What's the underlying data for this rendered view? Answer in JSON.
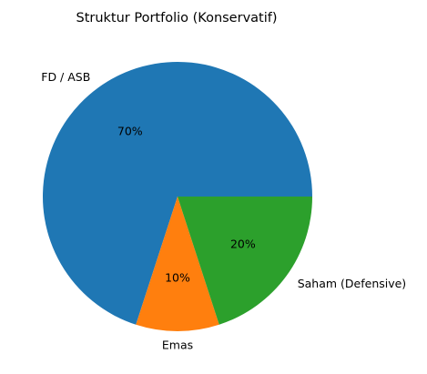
{
  "chart_data": {
    "type": "pie",
    "title": "Struktur Portfolio (Konservatif)",
    "slices": [
      {
        "label": "FD / ASB",
        "value": 70,
        "pct_label": "70%",
        "color": "#1f77b4"
      },
      {
        "label": "Emas",
        "value": 10,
        "pct_label": "10%",
        "color": "#ff7f0e"
      },
      {
        "label": "Saham (Defensive)",
        "value": 20,
        "pct_label": "20%",
        "color": "#2ca02c"
      }
    ],
    "start_angle": 0,
    "direction": "counterclockwise",
    "legend": "none"
  }
}
